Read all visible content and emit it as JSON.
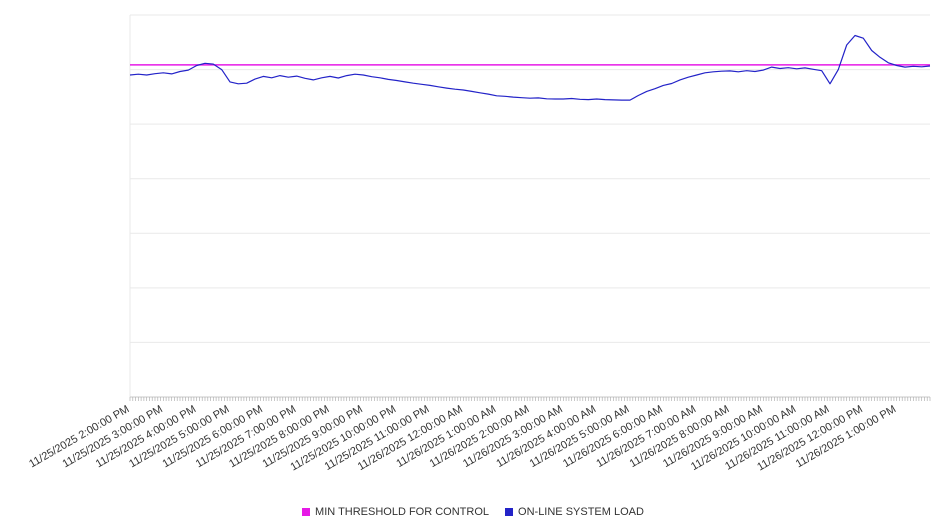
{
  "chart_data": {
    "type": "line",
    "title": "",
    "xlabel": "",
    "ylabel": "",
    "ylim": [
      0,
      140
    ],
    "grid_step": 20,
    "grid": true,
    "legend_position": "bottom",
    "colors": {
      "grid": "#e9e9e9",
      "axis": "#c8c8c8",
      "tick": "#b0b0b0",
      "label_text": "#333333"
    },
    "x_tick_labels": [
      "11/25/2025 2:00:00 PM",
      "11/25/2025 3:00:00 PM",
      "11/25/2025 4:00:00 PM",
      "11/25/2025 5:00:00 PM",
      "11/25/2025 6:00:00 PM",
      "11/25/2025 7:00:00 PM",
      "11/25/2025 8:00:00 PM",
      "11/25/2025 9:00:00 PM",
      "11/25/2025 10:00:00 PM",
      "11/25/2025 11:00:00 PM",
      "11/26/2025 12:00:00 AM",
      "11/26/2025 1:00:00 AM",
      "11/26/2025 2:00:00 AM",
      "11/26/2025 3:00:00 AM",
      "11/26/2025 4:00:00 AM",
      "11/26/2025 5:00:00 AM",
      "11/26/2025 6:00:00 AM",
      "11/26/2025 7:00:00 AM",
      "11/26/2025 8:00:00 AM",
      "11/26/2025 9:00:00 AM",
      "11/26/2025 10:00:00 AM",
      "11/26/2025 11:00:00 AM",
      "11/26/2025 12:00:00 PM",
      "11/26/2025 1:00:00 PM"
    ],
    "series": [
      {
        "name": "MIN THRESHOLD FOR CONTROL",
        "type": "threshold",
        "value": 121.7,
        "color": "#e61ae6"
      },
      {
        "name": "ON-LINE SYSTEM LOAD",
        "type": "line",
        "color": "#2323c8",
        "values": [
          118.0,
          118.3,
          118.0,
          118.5,
          118.8,
          118.4,
          119.3,
          119.8,
          121.5,
          122.3,
          122.0,
          120.0,
          115.5,
          114.8,
          115.0,
          116.5,
          117.5,
          117.0,
          117.8,
          117.2,
          117.6,
          116.8,
          116.2,
          117.0,
          117.5,
          116.9,
          117.8,
          118.3,
          118.0,
          117.4,
          117.0,
          116.4,
          116.0,
          115.5,
          115.0,
          114.6,
          114.2,
          113.7,
          113.2,
          112.8,
          112.5,
          112.0,
          111.5,
          111.0,
          110.4,
          110.2,
          109.9,
          109.7,
          109.5,
          109.6,
          109.3,
          109.2,
          109.2,
          109.4,
          109.1,
          109.0,
          109.2,
          109.0,
          108.9,
          108.8,
          108.8,
          110.5,
          112.0,
          113.0,
          114.2,
          114.9,
          116.2,
          117.2,
          118.0,
          118.8,
          119.2,
          119.4,
          119.5,
          119.2,
          119.6,
          119.3,
          119.8,
          120.9,
          120.4,
          120.7,
          120.3,
          120.6,
          120.1,
          119.6,
          114.8,
          120.0,
          129.0,
          132.5,
          131.5,
          127.0,
          124.5,
          122.5,
          121.5,
          120.9,
          121.2,
          121.0,
          121.3
        ]
      }
    ]
  }
}
